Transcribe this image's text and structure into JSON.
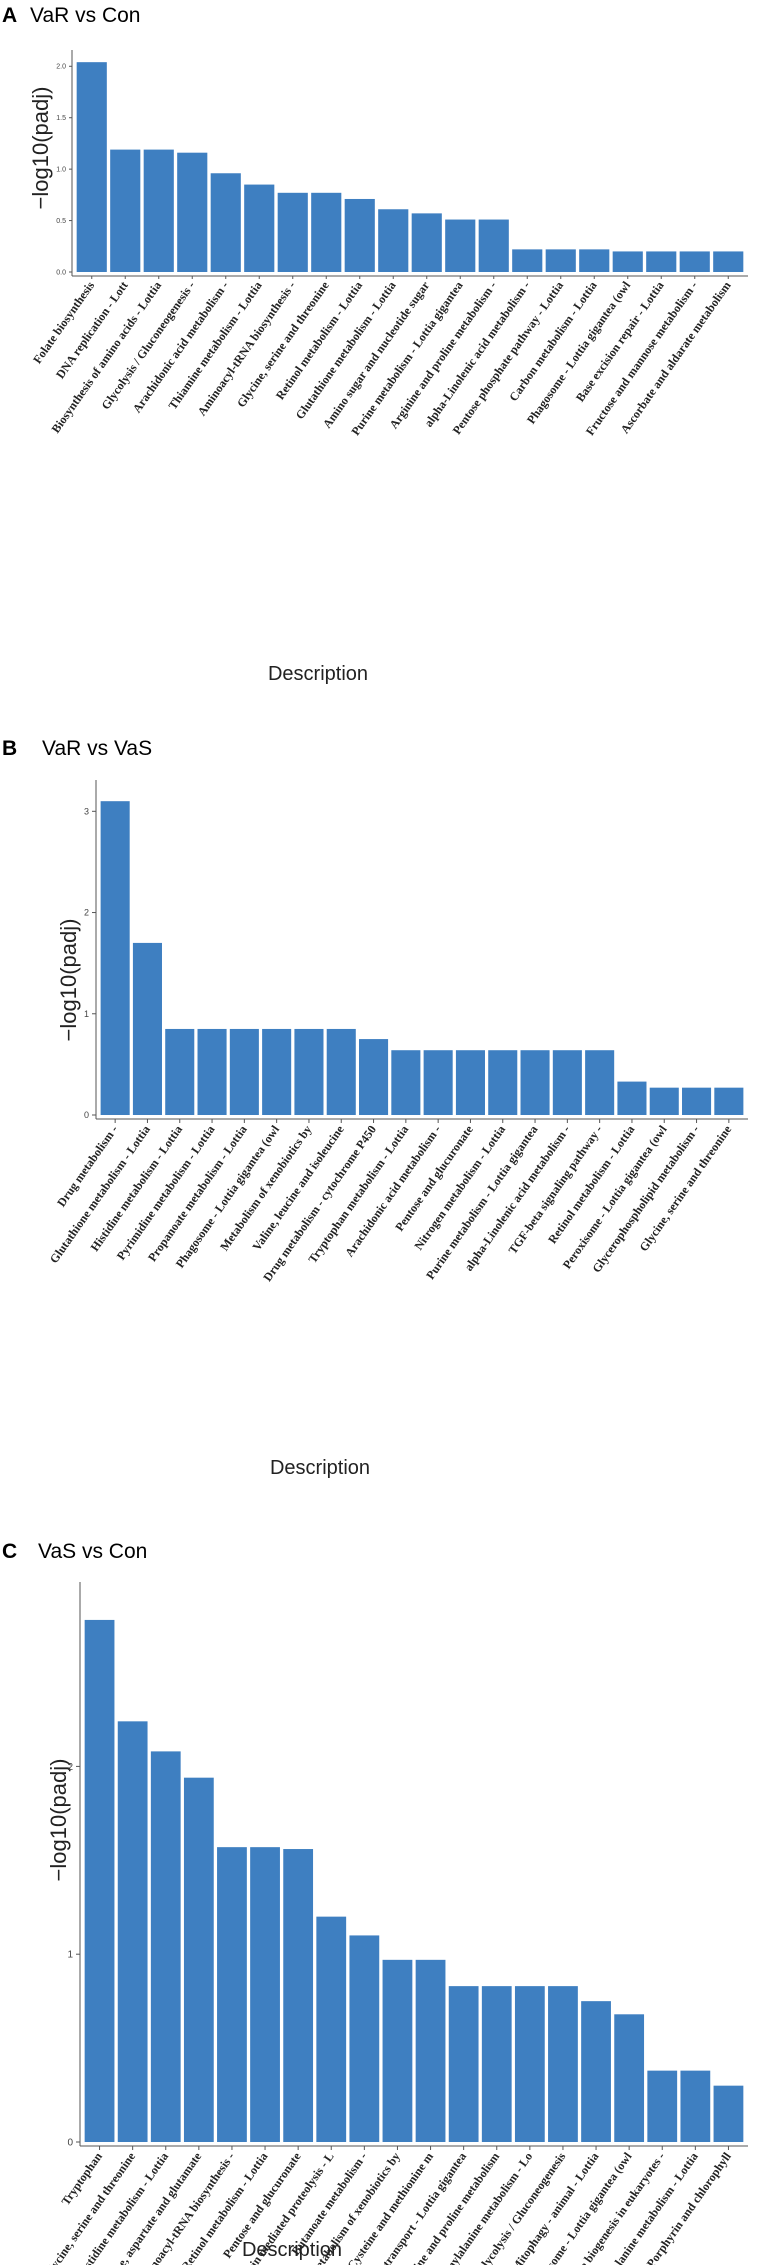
{
  "chart_data": [
    {
      "type": "bar",
      "panel_label": "A",
      "title": "VaR vs Con",
      "xlabel": "Description",
      "ylabel": "−log10(padj)",
      "ylim": [
        0,
        2.1
      ],
      "yticks": [
        0.0,
        0.5,
        1.0,
        1.5,
        2.0
      ],
      "ytick_labels": [
        "0.0",
        "0.5",
        "1.0",
        "1.5",
        "2.0"
      ],
      "bar_color": "#3e7fc1",
      "categories": [
        "Folate biosynthesis",
        "DNA replication - Lott",
        "Biosynthesis of amino acids - Lottia",
        "Glycolysis / Gluconeogenesis -",
        "Arachidonic acid metabolism -",
        "Thiamine metabolism - Lottia",
        "Aminoacyl-tRNA biosynthesis -",
        "Glycine, serine and threonine",
        "Retinol metabolism - Lottia",
        "Glutathione metabolism - Lottia",
        "Amino sugar and nucleotide sugar",
        "Purine metabolism - Lottia gigantea",
        "Arginine and proline metabolism -",
        "alpha-Linolenic acid metabolism -",
        "Pentose phosphate pathway - Lottia",
        "Carbon metabolism - Lottia",
        "Phagosome - Lottia gigantea (owl",
        "Base excision repair - Lottia",
        "Fructose and mannose metabolism -",
        "Ascorbate and aldarate metabolism"
      ],
      "values": [
        2.04,
        1.19,
        1.19,
        1.16,
        0.96,
        0.85,
        0.77,
        0.77,
        0.71,
        0.61,
        0.57,
        0.51,
        0.51,
        0.22,
        0.22,
        0.22,
        0.2,
        0.2,
        0.2,
        0.2
      ]
    },
    {
      "type": "bar",
      "panel_label": "B",
      "title": "VaR vs VaS",
      "xlabel": "Description",
      "ylabel": "−log10(padj)",
      "ylim": [
        0,
        3.25
      ],
      "yticks": [
        0,
        1,
        2,
        3
      ],
      "ytick_labels": [
        "0",
        "1",
        "2",
        "3"
      ],
      "bar_color": "#3e7fc1",
      "categories": [
        "Drug metabolism -",
        "Glutathione metabolism - Lottia",
        "Histidine metabolism - Lottia",
        "Pyrimidine metabolism - Lottia",
        "Propanoate metabolism - Lottia",
        "Phagosome - Lottia gigantea (owl",
        "Metabolism of xenobiotics by",
        "Valine, leucine and isoleucine",
        "Drug metabolism - cytochrome P450",
        "Tryptophan metabolism - Lottia",
        "Arachidonic acid metabolism -",
        "Pentose and glucuronate",
        "Nitrogen metabolism - Lottia",
        "Purine metabolism - Lottia gigantea",
        "alpha-Linolenic acid metabolism -",
        "TGF-beta signaling pathway -",
        "Retinol metabolism - Lottia",
        "Peroxisome - Lottia gigantea (owl",
        "Glycerophospholipid metabolism -",
        "Glycine, serine and threonine"
      ],
      "values": [
        3.1,
        1.7,
        0.85,
        0.85,
        0.85,
        0.85,
        0.85,
        0.85,
        0.75,
        0.64,
        0.64,
        0.64,
        0.64,
        0.64,
        0.64,
        0.64,
        0.33,
        0.27,
        0.27,
        0.27
      ]
    },
    {
      "type": "bar",
      "panel_label": "C",
      "title": "VaS vs Con",
      "xlabel": "Description",
      "ylabel": "−log10(padj)",
      "ylim": [
        0,
        2.95
      ],
      "yticks": [
        0,
        1,
        2
      ],
      "ytick_labels": [
        "0",
        "1",
        "2"
      ],
      "bar_color": "#3e7fc1",
      "categories": [
        "Tryptophan",
        "Glycine, serine and threonine",
        "Histidine metabolism - Lottia",
        "Alanine, aspartate and glutamate",
        "Aminoacyl-tRNA biosynthesis -",
        "Retinol metabolism - Lottia",
        "Pentose and glucuronate",
        "Ubiquitin mediated proteolysis - L",
        "Butanoate metabolism -",
        "Metabolism of xenobiotics by",
        "Cysteine and methionine m",
        "RNA transport - Lottia gigantea",
        "Arginine and proline metabolism",
        "Phenylalanine metabolism - Lo",
        "Glycolysis / Gluconeogenesis",
        "Mitophagy - animal - Lottia",
        "Phagosome - Lottia gigantea (owl",
        "Ribosome biogenesis in eukaryotes -",
        "beta-Alanine metabolism - Lottia",
        "Porphyrin and chlorophyll"
      ],
      "values": [
        2.78,
        2.24,
        2.08,
        1.94,
        1.57,
        1.57,
        1.56,
        1.2,
        1.1,
        0.97,
        0.97,
        0.83,
        0.83,
        0.83,
        0.83,
        0.75,
        0.68,
        0.38,
        0.38,
        0.3
      ]
    }
  ]
}
